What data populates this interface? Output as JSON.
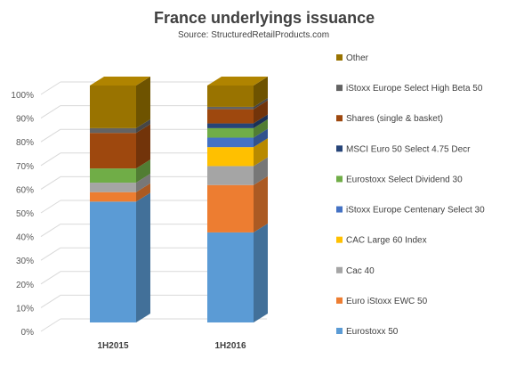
{
  "title": "France underlyings issuance",
  "subtitle": "Source: StructuredRetailProducts.com",
  "chart_data": {
    "type": "bar",
    "stacked": true,
    "three_d": true,
    "categories": [
      "1H2015",
      "1H2016"
    ],
    "ylim": [
      0,
      100
    ],
    "y_ticks": [
      "0%",
      "10%",
      "20%",
      "30%",
      "40%",
      "50%",
      "60%",
      "70%",
      "80%",
      "90%",
      "100%"
    ],
    "grid": true,
    "legend_position": "right",
    "series": [
      {
        "name": "Eurostoxx 50",
        "color": "#5b9bd5",
        "values": [
          51,
          38
        ]
      },
      {
        "name": "Euro iStoxx EWC 50",
        "color": "#ed7d31",
        "values": [
          4,
          20
        ]
      },
      {
        "name": "Cac 40",
        "color": "#a5a5a5",
        "values": [
          4,
          8
        ]
      },
      {
        "name": "CAC Large 60 Index",
        "color": "#ffc000",
        "values": [
          0,
          8
        ]
      },
      {
        "name": "iStoxx Europe Centenary Select 30",
        "color": "#4472c4",
        "values": [
          0,
          4
        ]
      },
      {
        "name": "Eurostoxx Select Dividend 30",
        "color": "#70ad47",
        "values": [
          6,
          4
        ]
      },
      {
        "name": "MSCI Euro 50 Select 4.75 Decr",
        "color": "#264478",
        "values": [
          0,
          2
        ]
      },
      {
        "name": "Shares (single & basket)",
        "color": "#9e480e",
        "values": [
          15,
          6
        ]
      },
      {
        "name": "iStoxx Europe Select High Beta 50",
        "color": "#636363",
        "values": [
          2,
          1
        ]
      },
      {
        "name": "Other",
        "color": "#997300",
        "values": [
          18,
          9
        ]
      }
    ]
  }
}
